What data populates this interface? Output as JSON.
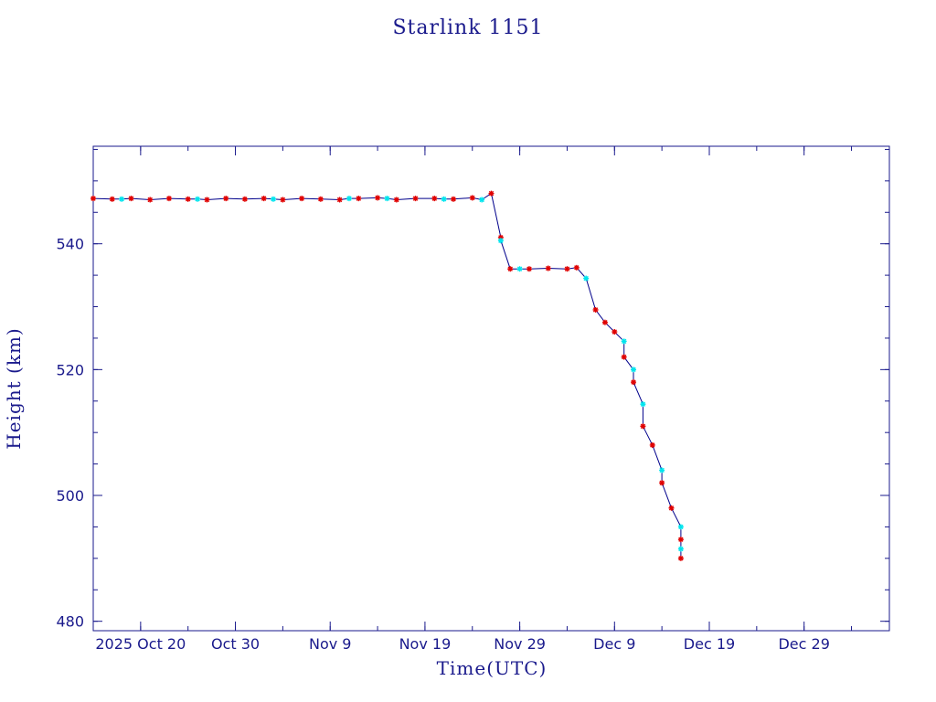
{
  "chart_data": {
    "type": "scatter",
    "title": "Starlink 1151",
    "xlabel": "Time(UTC)",
    "ylabel": "Height (km)",
    "x_ticks": [
      {
        "date": "2025-10-20",
        "label": "2025 Oct 20"
      },
      {
        "date": "2025-10-30",
        "label": "Oct 30"
      },
      {
        "date": "2025-11-09",
        "label": "Nov  9"
      },
      {
        "date": "2025-11-19",
        "label": "Nov 19"
      },
      {
        "date": "2025-11-29",
        "label": "Nov 29"
      },
      {
        "date": "2025-12-09",
        "label": "Dec  9"
      },
      {
        "date": "2025-12-19",
        "label": "Dec 19"
      },
      {
        "date": "2025-12-29",
        "label": "Dec 29"
      }
    ],
    "y_ticks": [
      480,
      500,
      520,
      540
    ],
    "xlim": [
      "2025-10-15",
      "2026-01-07"
    ],
    "ylim": [
      478.5,
      555.5
    ],
    "grid": false,
    "line_color": "#00008b",
    "series": [
      {
        "color": "#e00000",
        "marker": "asterisk",
        "points": [
          [
            "2025-10-15",
            547.2
          ],
          [
            "2025-10-17",
            547.1
          ],
          [
            "2025-10-19",
            547.2
          ],
          [
            "2025-10-21",
            547.0
          ],
          [
            "2025-10-23",
            547.2
          ],
          [
            "2025-10-25",
            547.1
          ],
          [
            "2025-10-27",
            547.0
          ],
          [
            "2025-10-29",
            547.2
          ],
          [
            "2025-10-31",
            547.1
          ],
          [
            "2025-11-02",
            547.2
          ],
          [
            "2025-11-04",
            547.0
          ],
          [
            "2025-11-06",
            547.2
          ],
          [
            "2025-11-08",
            547.1
          ],
          [
            "2025-11-10",
            547.0
          ],
          [
            "2025-11-12",
            547.2
          ],
          [
            "2025-11-14",
            547.3
          ],
          [
            "2025-11-16",
            547.0
          ],
          [
            "2025-11-18",
            547.2
          ],
          [
            "2025-11-20",
            547.2
          ],
          [
            "2025-11-22",
            547.1
          ],
          [
            "2025-11-24",
            547.3
          ],
          [
            "2025-11-26",
            548.0
          ],
          [
            "2025-11-27",
            541.0
          ],
          [
            "2025-11-28",
            536.0
          ],
          [
            "2025-11-30",
            536.0
          ],
          [
            "2025-12-02",
            536.1
          ],
          [
            "2025-12-04",
            536.0
          ],
          [
            "2025-12-05",
            536.2
          ],
          [
            "2025-12-07",
            529.5
          ],
          [
            "2025-12-08",
            527.5
          ],
          [
            "2025-12-09",
            526.0
          ],
          [
            "2025-12-10",
            522.0
          ],
          [
            "2025-12-11",
            518.0
          ],
          [
            "2025-12-12",
            511.0
          ],
          [
            "2025-12-13",
            508.0
          ],
          [
            "2025-12-14",
            502.0
          ],
          [
            "2025-12-15",
            498.0
          ],
          [
            "2025-12-16",
            493.0
          ],
          [
            "2025-12-16",
            490.0
          ]
        ]
      },
      {
        "color": "#00e5ee",
        "marker": "asterisk",
        "points": [
          [
            "2025-10-18",
            547.1
          ],
          [
            "2025-10-26",
            547.1
          ],
          [
            "2025-11-03",
            547.1
          ],
          [
            "2025-11-11",
            547.2
          ],
          [
            "2025-11-15",
            547.2
          ],
          [
            "2025-11-21",
            547.1
          ],
          [
            "2025-11-25",
            547.0
          ],
          [
            "2025-11-27",
            540.5
          ],
          [
            "2025-11-29",
            536.0
          ],
          [
            "2025-12-06",
            534.5
          ],
          [
            "2025-12-10",
            524.5
          ],
          [
            "2025-12-11",
            520.0
          ],
          [
            "2025-12-12",
            514.5
          ],
          [
            "2025-12-14",
            504.0
          ],
          [
            "2025-12-16",
            495.0
          ],
          [
            "2025-12-16",
            491.5
          ]
        ]
      }
    ]
  }
}
